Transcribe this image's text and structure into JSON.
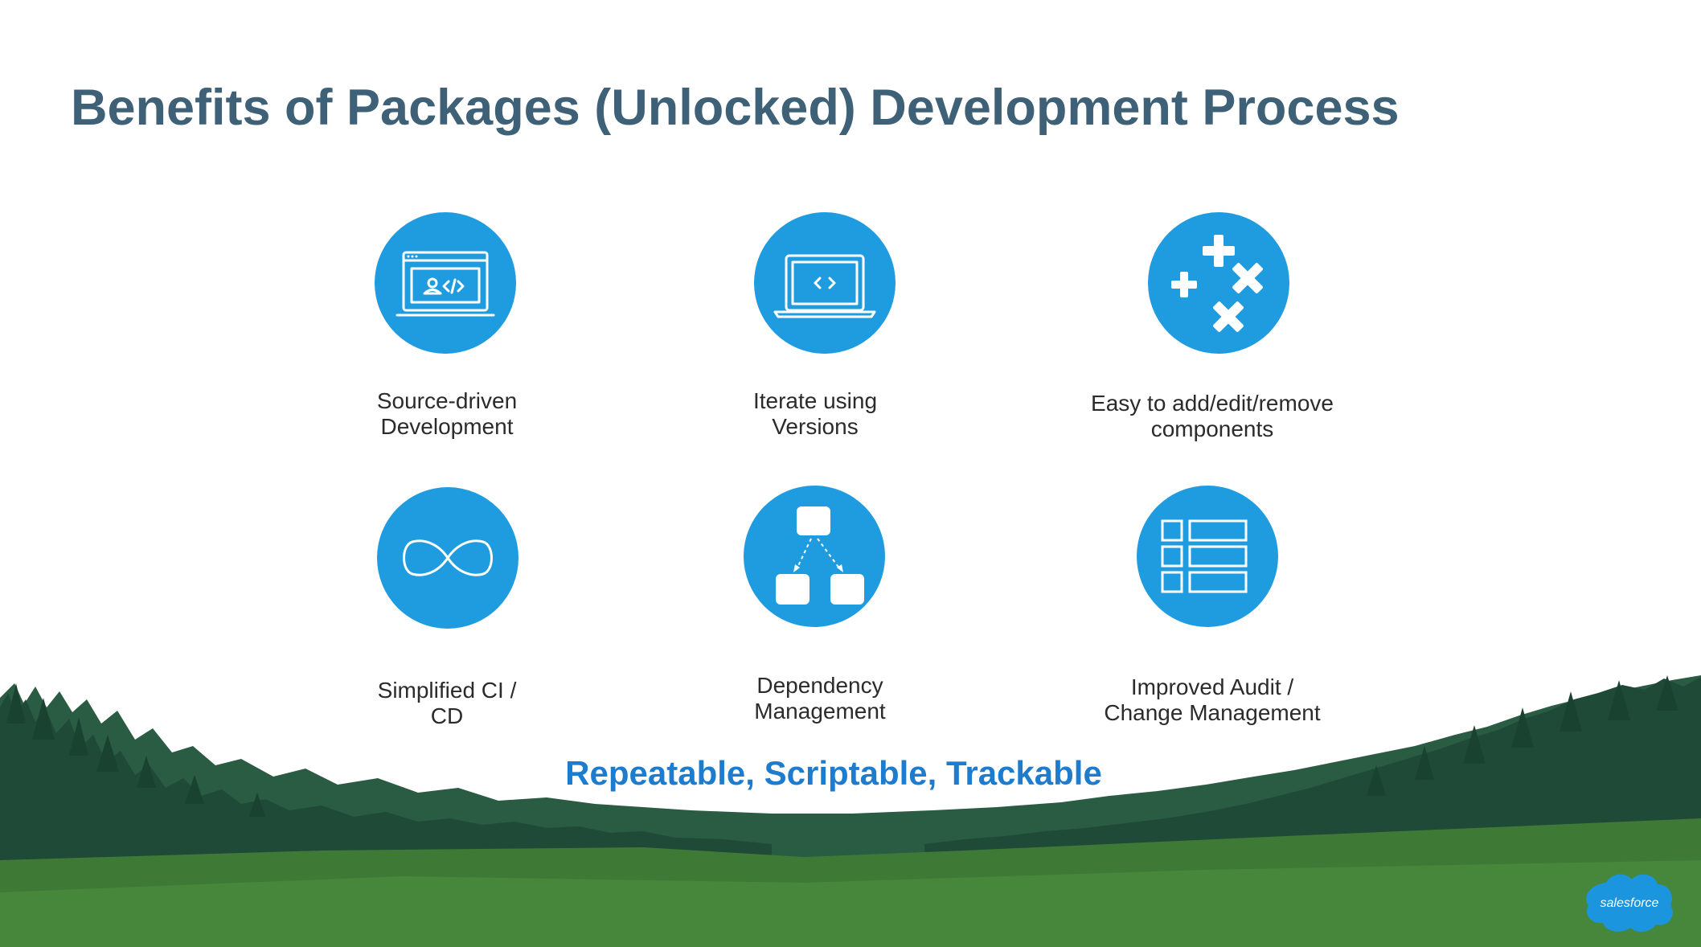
{
  "slide": {
    "title": "Benefits of Packages (Unlocked) Development Process",
    "tagline": "Repeatable, Scriptable, Trackable",
    "logo_text": "salesforce",
    "colors": {
      "title": "#3f6178",
      "icon_circle": "#1f9ce0",
      "tagline": "#1d7ccd",
      "grass": "#3e7a35",
      "trees": "#214d3a"
    }
  },
  "benefits": [
    {
      "icon": "code-window-icon",
      "label_lines": [
        "Source-driven",
        "Development"
      ]
    },
    {
      "icon": "laptop-code-icon",
      "label_lines": [
        "Iterate using",
        "Versions"
      ]
    },
    {
      "icon": "plus-cross-icon",
      "label_lines": [
        "Easy to add/edit/remove",
        "components"
      ]
    },
    {
      "icon": "infinity-icon",
      "label_lines": [
        "Simplified CI /",
        "CD"
      ]
    },
    {
      "icon": "hierarchy-icon",
      "label_lines": [
        "Dependency",
        "Management"
      ]
    },
    {
      "icon": "list-icon",
      "label_lines": [
        "Improved Audit /",
        "Change Management"
      ]
    }
  ]
}
